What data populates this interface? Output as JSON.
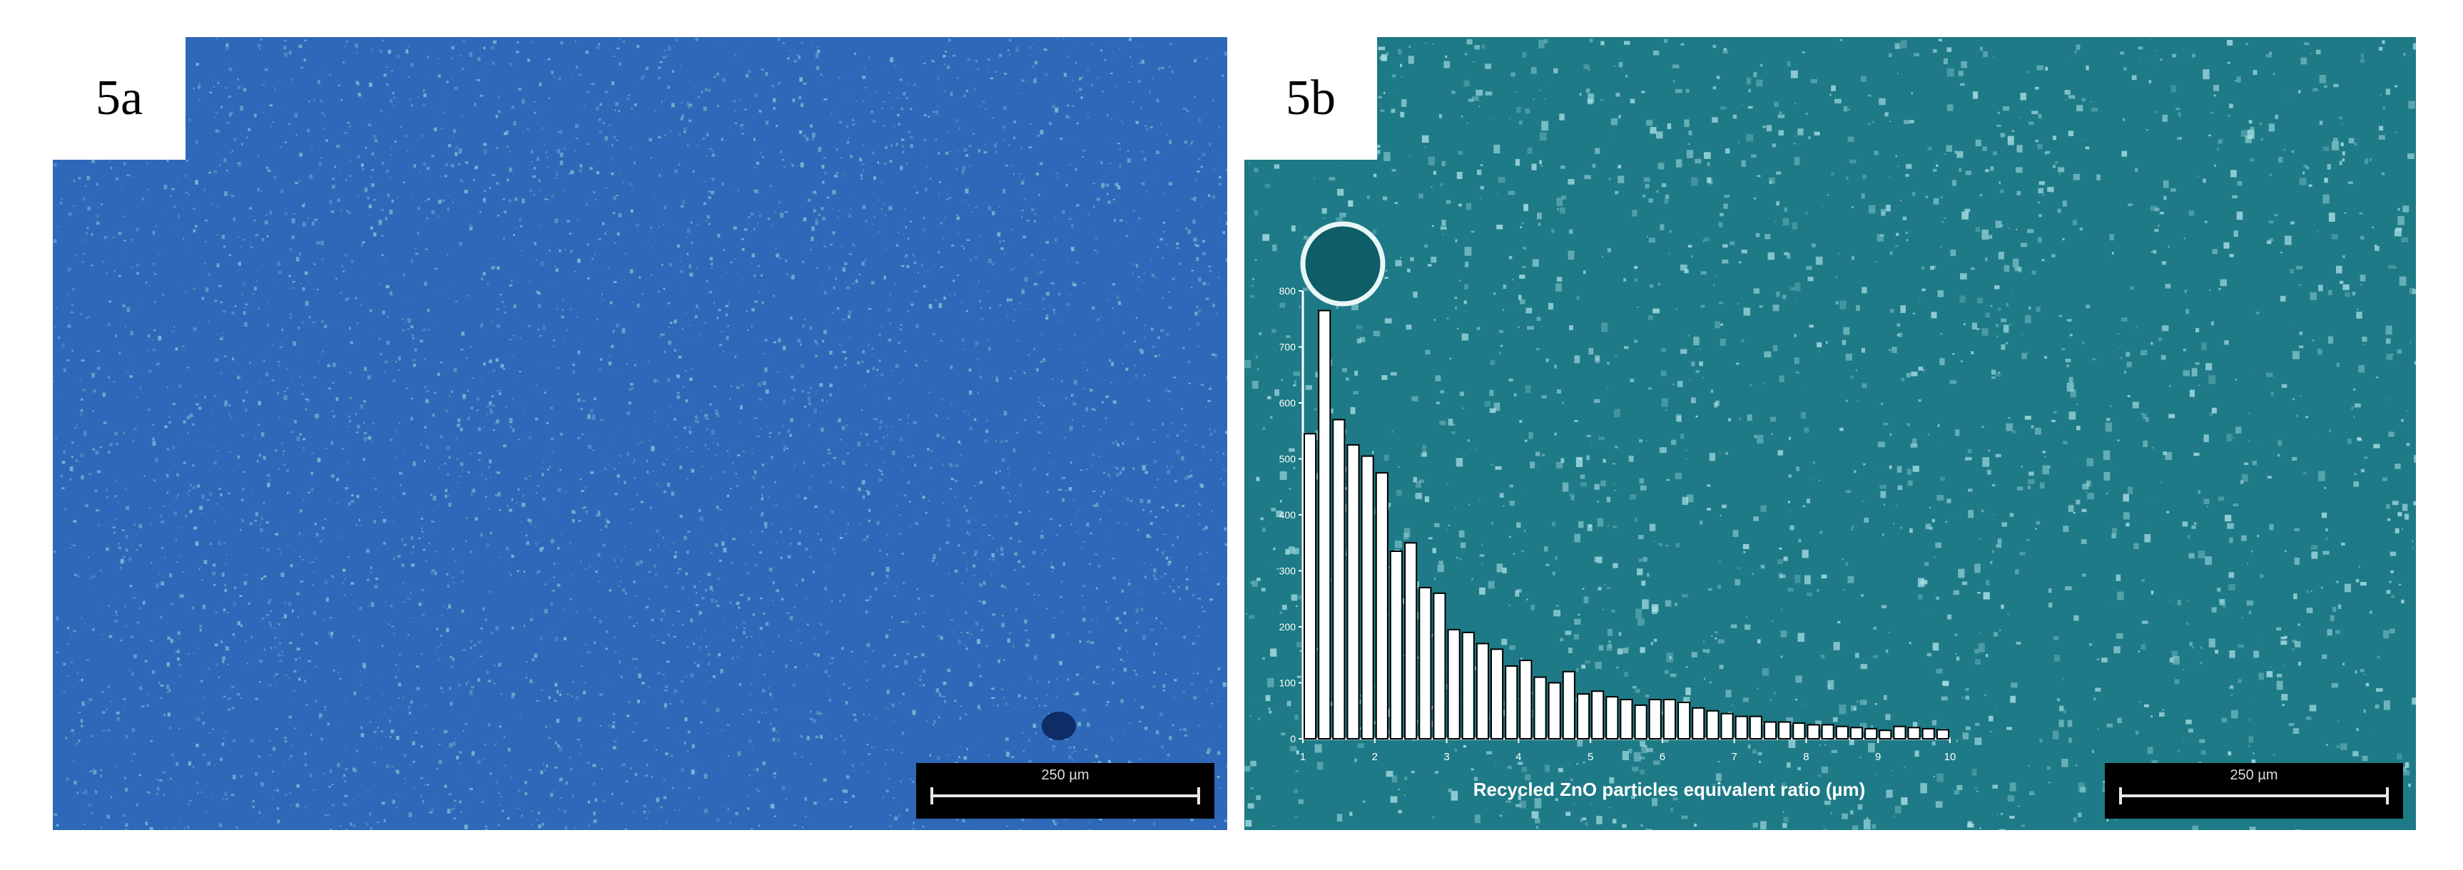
{
  "panels": [
    {
      "label": "5a",
      "scale_bar": "250 µm"
    },
    {
      "label": "5b",
      "scale_bar": "250 µm"
    }
  ],
  "colors": {
    "panel_a_bg": "#2f68b8",
    "panel_a_speck": "#78c6d8",
    "panel_b_bg": "#1d7a86",
    "panel_b_speck": "#a9dfe4",
    "histogram_bar_fill": "#ffffff",
    "histogram_bar_stroke": "#000000"
  },
  "chart_data": {
    "type": "bar",
    "xlabel": "Recycled ZnO particles equivalent ratio (µm)",
    "ylabel": "",
    "xlim": [
      1,
      10
    ],
    "ylim": [
      0,
      800
    ],
    "x_ticks": [
      1,
      2,
      3,
      4,
      5,
      6,
      7,
      8,
      9,
      10
    ],
    "y_ticks": [
      0,
      100,
      200,
      300,
      400,
      500,
      600,
      700,
      800
    ],
    "values": [
      545,
      765,
      570,
      525,
      505,
      475,
      335,
      350,
      270,
      260,
      195,
      190,
      170,
      160,
      130,
      140,
      110,
      100,
      120,
      80,
      85,
      75,
      70,
      60,
      70,
      70,
      65,
      55,
      50,
      45,
      40,
      40,
      30,
      30,
      28,
      25,
      25,
      22,
      20,
      18,
      15,
      22,
      20,
      18,
      16
    ]
  }
}
